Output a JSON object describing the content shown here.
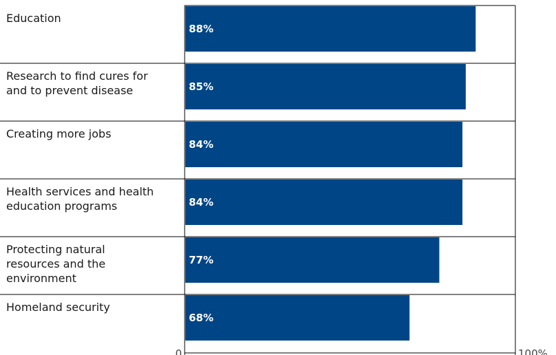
{
  "chart_data": {
    "type": "bar",
    "orientation": "horizontal",
    "categories": [
      [
        "Education"
      ],
      [
        "Research to find cures for",
        "and to prevent disease"
      ],
      [
        "Creating more jobs"
      ],
      [
        "Health services and health",
        "education programs"
      ],
      [
        "Protecting natural",
        "resources and the",
        "environment"
      ],
      [
        "Homeland security"
      ]
    ],
    "values": [
      88,
      85,
      84,
      84,
      77,
      68
    ],
    "value_labels": [
      "88%",
      "85%",
      "84%",
      "84%",
      "77%",
      "68%"
    ],
    "xlim": [
      0,
      100
    ],
    "x_tick_labels": [
      "0",
      "100%"
    ],
    "grid": false,
    "bar_color": "#004586",
    "label_color": "#ffffff"
  }
}
